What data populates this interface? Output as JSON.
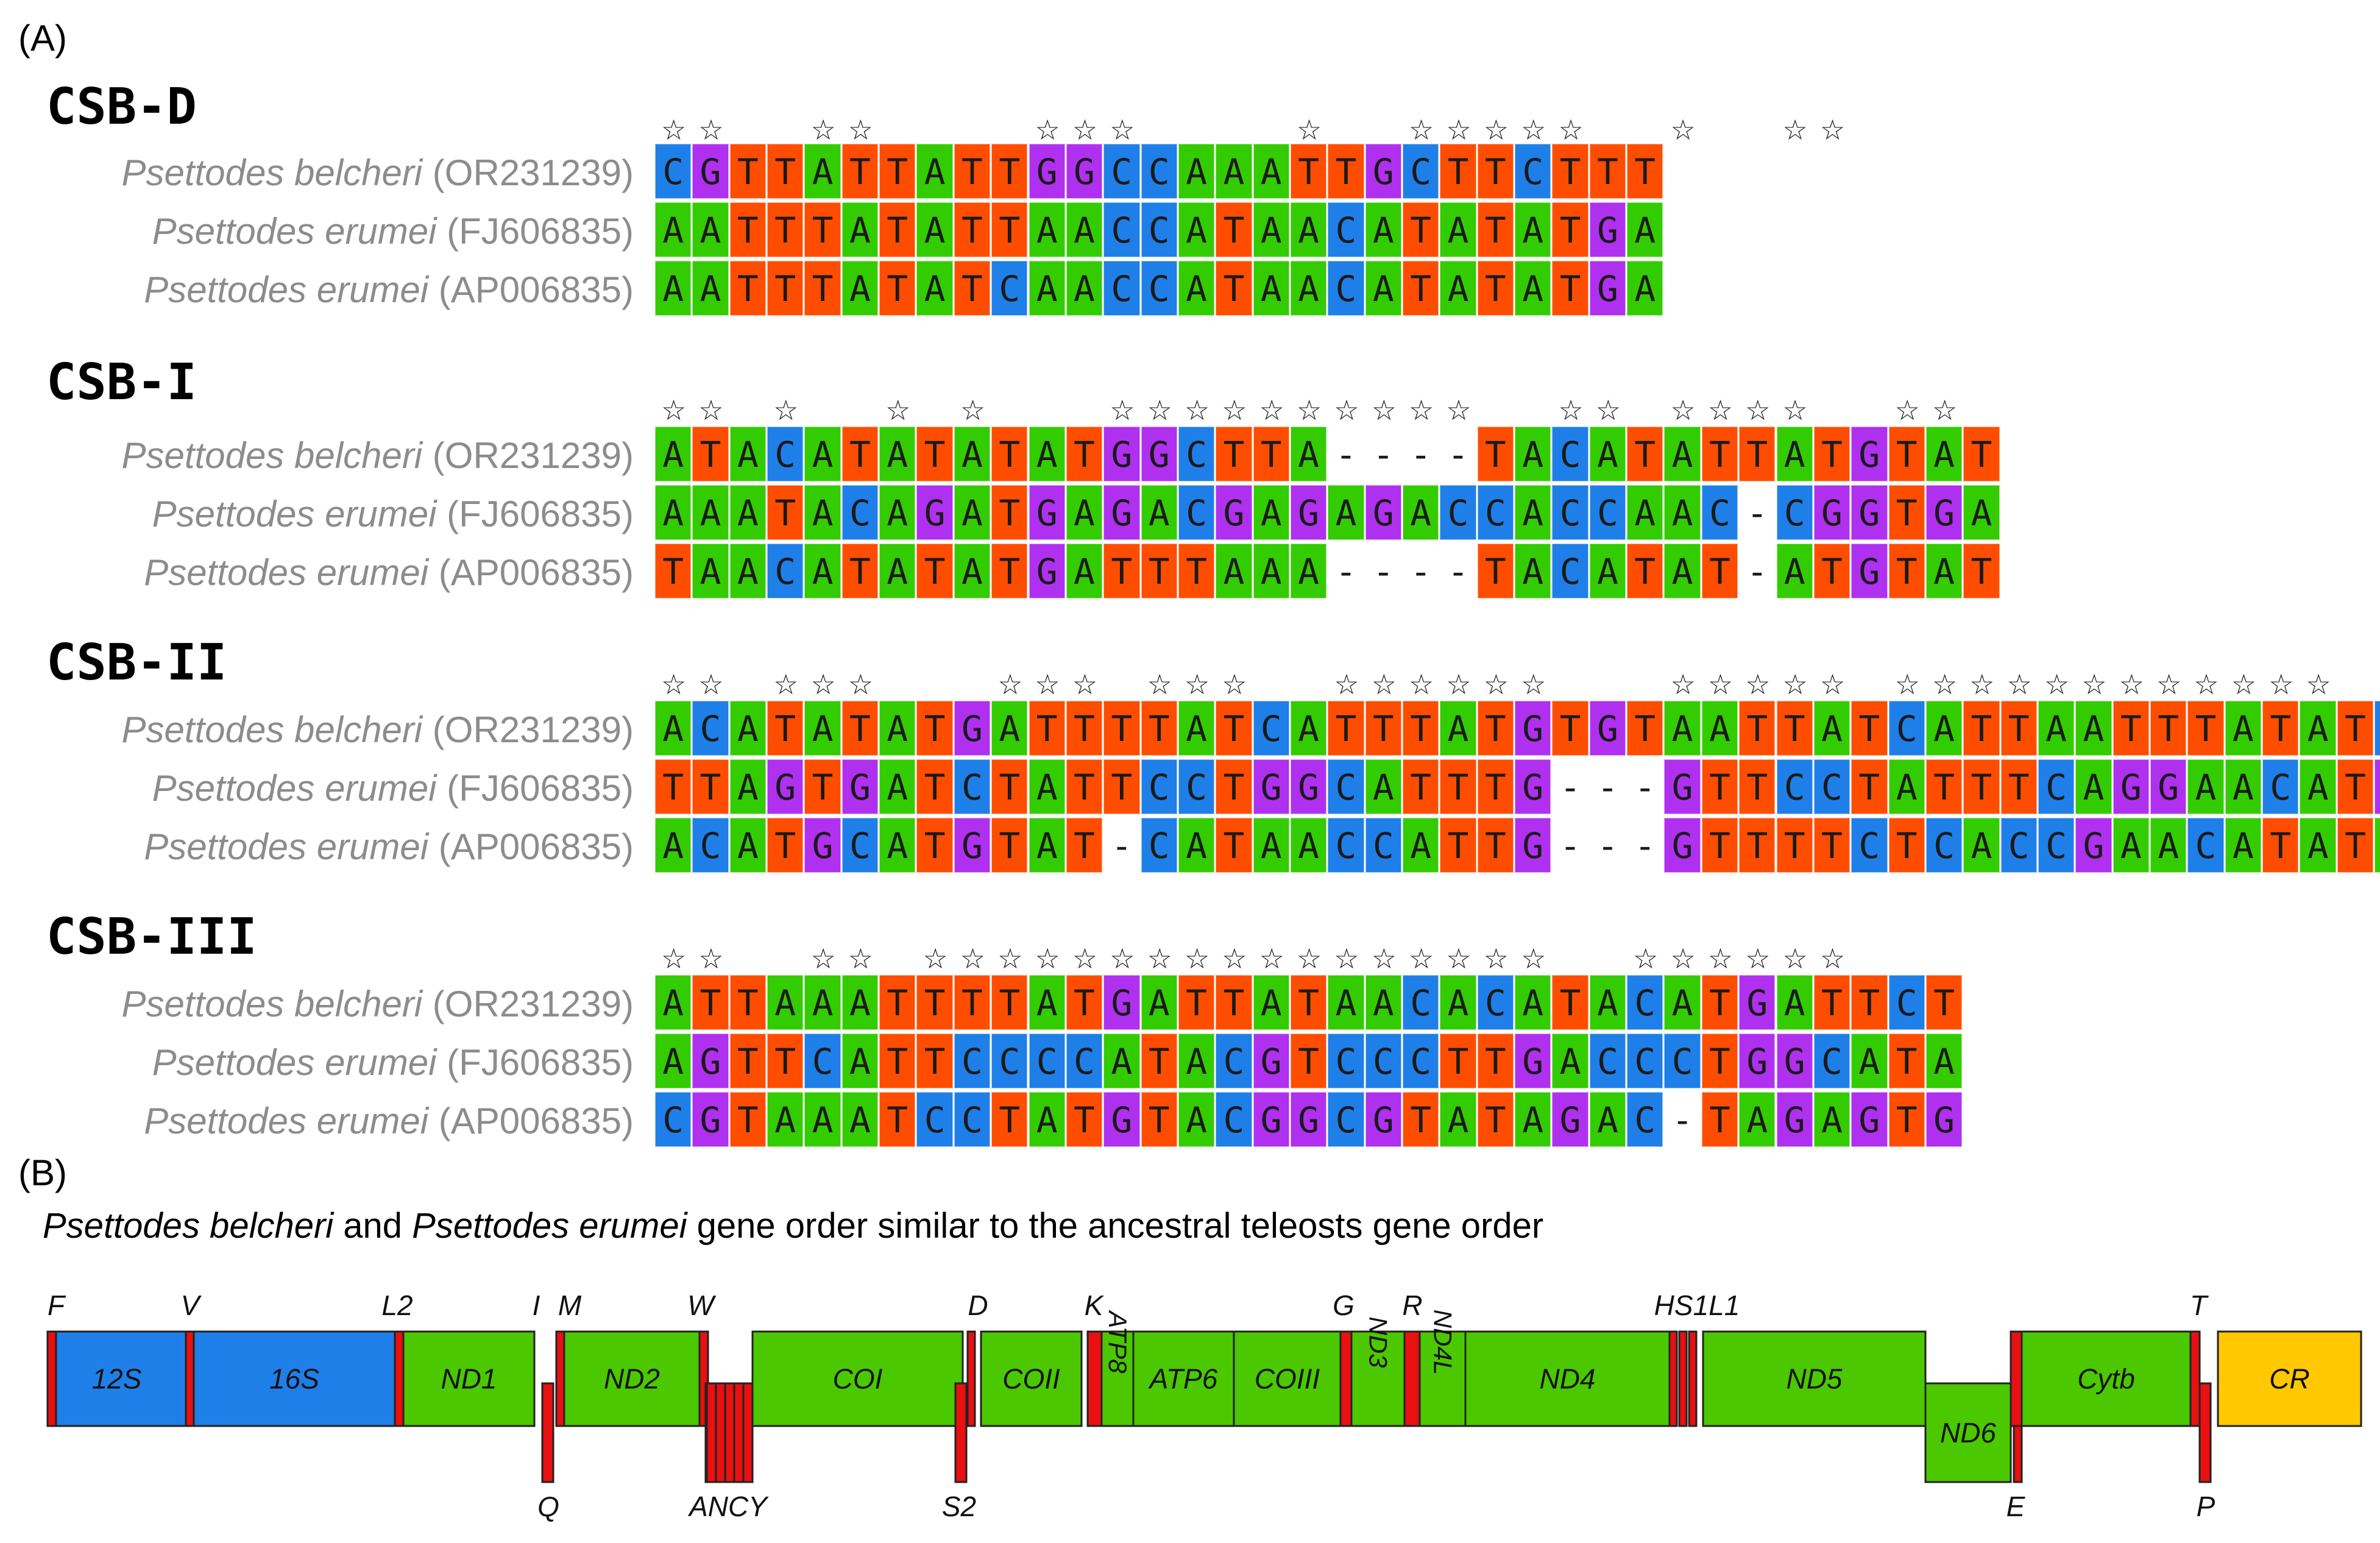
{
  "panel_a_label": "(A)",
  "panel_b_label": "(B)",
  "colors": {
    "A": "#33cc00",
    "T": "#ff4d00",
    "G": "#b030f0",
    "C": "#1f7fe8",
    "-": "#ffffff"
  },
  "blocks": [
    {
      "title": "CSB-D",
      "names": [
        {
          "genus": "Psettodes belcheri",
          "acc": "(OR231239)"
        },
        {
          "genus": "Psettodes erumei",
          "acc": "(FJ606835)"
        },
        {
          "genus": "Psettodes erumei",
          "acc": "(AP006835)"
        }
      ],
      "sequences": [
        "CGTTATTATTGGCCAAATTGCTTCTTT",
        "AATTTATATTAACCATAACATATATGA",
        "AATTTATATCAACCATAACATATATGA"
      ],
      "stars": "**..**....***....*..*****..*..**"
    },
    {
      "title": "CSB-I",
      "names": [
        {
          "genus": "Psettodes belcheri",
          "acc": "(OR231239)"
        },
        {
          "genus": "Psettodes erumei",
          "acc": "(FJ606835)"
        },
        {
          "genus": "Psettodes erumei",
          "acc": "(AP006835)"
        }
      ],
      "sequences": [
        "ATACATATATATGGCTTA----TACATATTATGTAT",
        "AAATACAGATGAGACGAGAGACCACCAAC-CGGTGA",
        "TAACATATATGATTTAAA----TACATAT-ATGTAT"
      ],
      "stars": "**.*..*.*...**********..**.****..**"
    },
    {
      "title": "CSB-II",
      "names": [
        {
          "genus": "Psettodes belcheri",
          "acc": "(OR231239)"
        },
        {
          "genus": "Psettodes erumei",
          "acc": "(FJ606835)"
        },
        {
          "genus": "Psettodes erumei",
          "acc": "(AP006835)"
        }
      ],
      "sequences": [
        "ACATATATGATTTTATCATTTATGTGTAATTATCATTAATTTATATCAATT",
        "TTAGTGATCTATTCCTGGCATTTG---GTTCCTATTTCAGGAACATGACTT",
        "ACATGCATGTAT-CATAACCATTG---GTTTTCTCACCGAACATATAGCTT"
      ],
      "stars": "**.***...***.***..******...*****.************..*...***.."
    },
    {
      "title": "CSB-III",
      "names": [
        {
          "genus": "Psettodes belcheri",
          "acc": "(OR231239)"
        },
        {
          "genus": "Psettodes erumei",
          "acc": "(FJ606835)"
        },
        {
          "genus": "Psettodes erumei",
          "acc": "(AP006835)"
        }
      ],
      "sequences": [
        "ATTAAATTTTATGATTATAACACATACATGATTCT",
        "AGTTCATTCCCCATACGTCCCTTGACCCTGGCATA",
        "CGTAAATCCTATGTACGGCGTATAGAC-TAGAGTG"
      ],
      "stars": "**..**.*****************..******"
    }
  ],
  "gene_order": {
    "caption_parts": [
      "Psettodes belcheri",
      " and ",
      "Psettodes erumei",
      " gene order similar to the ancestral teleosts gene order"
    ],
    "genes": [
      {
        "name": "12S",
        "color": "#1f7fe8"
      },
      {
        "name": "16S",
        "color": "#1f7fe8"
      },
      {
        "name": "ND1",
        "color": "#4bc800"
      },
      {
        "name": "ND2",
        "color": "#4bc800"
      },
      {
        "name": "COI",
        "color": "#4bc800"
      },
      {
        "name": "COII",
        "color": "#4bc800"
      },
      {
        "name": "ATP8",
        "color": "#4bc800"
      },
      {
        "name": "ATP6",
        "color": "#4bc800"
      },
      {
        "name": "COIII",
        "color": "#4bc800"
      },
      {
        "name": "ND3",
        "color": "#4bc800"
      },
      {
        "name": "ND4L",
        "color": "#4bc800"
      },
      {
        "name": "ND4",
        "color": "#4bc800"
      },
      {
        "name": "ND5",
        "color": "#4bc800"
      },
      {
        "name": "ND6",
        "color": "#4bc800"
      },
      {
        "name": "Cytb",
        "color": "#4bc800"
      },
      {
        "name": "CR",
        "color": "#ffc800"
      }
    ],
    "trna_top_labels": [
      "F",
      "V",
      "L2",
      "I",
      "M",
      "W",
      "D",
      "K",
      "G",
      "R",
      "HS1L1",
      "T"
    ],
    "trna_bottom_labels": [
      "Q",
      "ANCY",
      "S2",
      "E",
      "P"
    ],
    "trna_color": "#e81010"
  }
}
